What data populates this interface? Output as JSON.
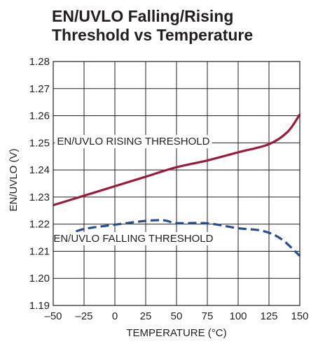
{
  "chart_data": {
    "type": "line",
    "title_lines": [
      "EN/UVLO Falling/Rising",
      "Threshold vs Temperature"
    ],
    "xlabel": "TEMPERATURE (°C)",
    "ylabel": "EN/UVLO (V)",
    "xlim": [
      -50,
      150
    ],
    "ylim": [
      1.19,
      1.28
    ],
    "x_ticks": [
      -50,
      -25,
      0,
      25,
      50,
      75,
      100,
      125,
      150
    ],
    "x_tick_labels": [
      "–50",
      "–25",
      "0",
      "25",
      "50",
      "75",
      "100",
      "125",
      "150"
    ],
    "y_ticks": [
      1.19,
      1.2,
      1.21,
      1.22,
      1.23,
      1.24,
      1.25,
      1.26,
      1.27,
      1.28
    ],
    "y_tick_labels": [
      "1.19",
      "1.20",
      "1.21",
      "1.22",
      "1.23",
      "1.24",
      "1.25",
      "1.26",
      "1.27",
      "1.28"
    ],
    "grid": true,
    "series": [
      {
        "name": "EN/UVLO RISING THRESHOLD",
        "color": "#9b1b3a",
        "dash": "solid",
        "x": [
          -50,
          -25,
          0,
          25,
          50,
          75,
          100,
          125,
          140,
          150
        ],
        "y": [
          1.227,
          1.2305,
          1.234,
          1.2375,
          1.241,
          1.2435,
          1.2465,
          1.2495,
          1.254,
          1.2605
        ]
      },
      {
        "name": "EN/UVLO FALLING THRESHOLD",
        "color": "#2a4d8f",
        "dash": "dashed",
        "x": [
          -50,
          -35,
          -25,
          0,
          25,
          40,
          50,
          75,
          100,
          120,
          135,
          150
        ],
        "y": [
          1.2132,
          1.2165,
          1.2182,
          1.2198,
          1.2212,
          1.2214,
          1.2204,
          1.2203,
          1.2185,
          1.2175,
          1.2145,
          1.2083
        ]
      }
    ],
    "annotations": [
      {
        "text": "EN/UVLO RISING THRESHOLD",
        "x": 15,
        "y": 1.2503
      },
      {
        "text": "EN/UVLO FALLING THRESHOLD",
        "x": 15,
        "y": 1.2145
      }
    ]
  }
}
